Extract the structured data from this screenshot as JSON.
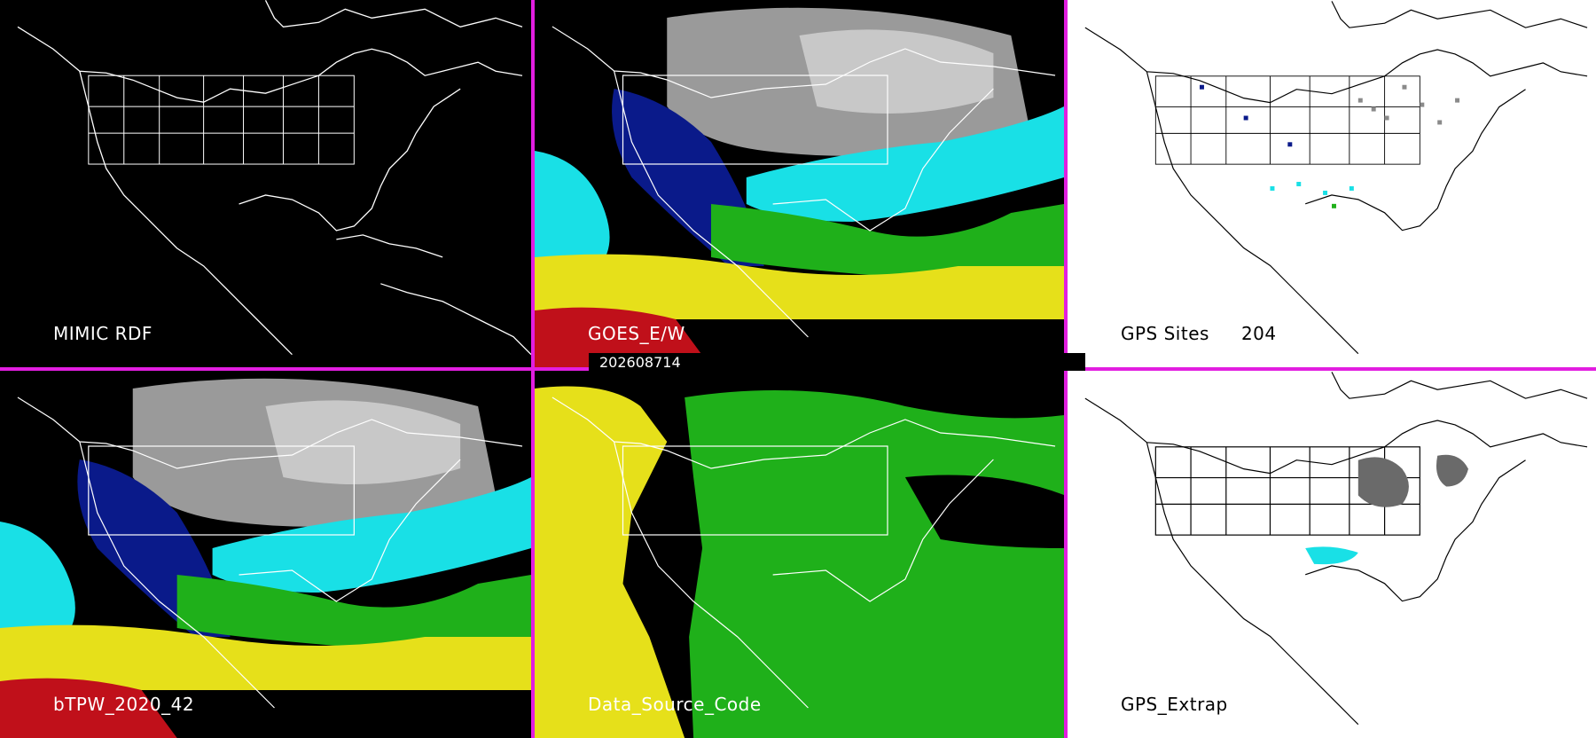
{
  "panels": {
    "mimic_rdf": {
      "label": "MIMIC RDF"
    },
    "goes_ew": {
      "label": "GOES_E/W"
    },
    "gps_sites": {
      "label": "GPS Sites",
      "count": "204"
    },
    "btpw": {
      "label": "bTPW_2020_42"
    },
    "data_source_code": {
      "label": "Data_Source_Code"
    },
    "gps_extrap": {
      "label": "GPS_Extrap"
    }
  },
  "timestamp": "202608714",
  "colors": {
    "separator": "#e21ee0",
    "dark_blue": "#0a1a8a",
    "cyan": "#19e0e6",
    "green": "#1fb01a",
    "yellow": "#e6e01a",
    "red": "#c0101a",
    "gray": "#8a8a8a"
  }
}
